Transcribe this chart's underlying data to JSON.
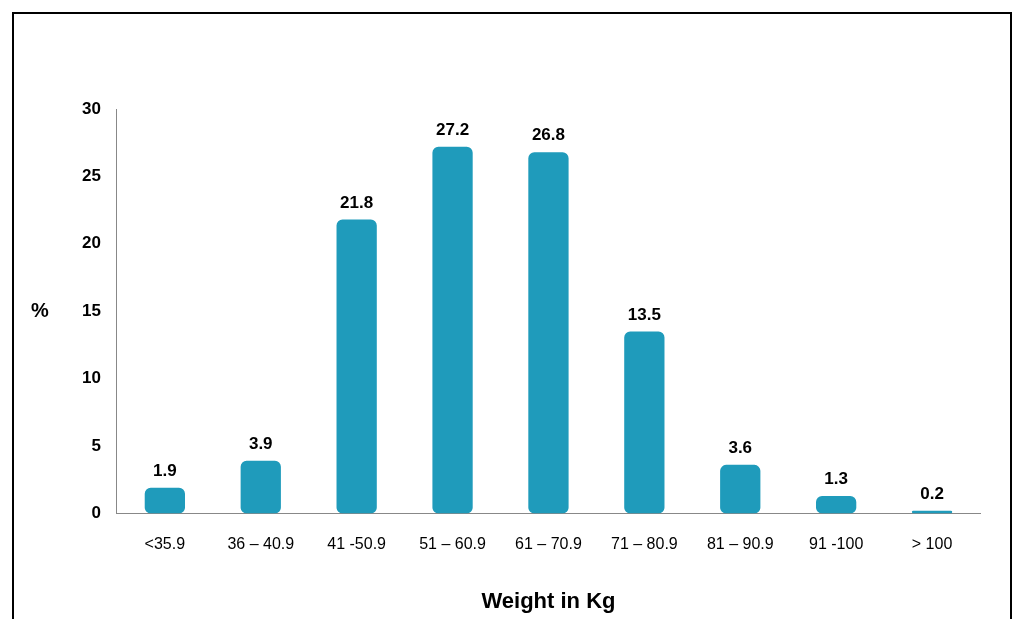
{
  "chart_data": {
    "type": "bar",
    "xlabel": "Weight in Kg",
    "ylabel": "%",
    "categories": [
      "<35.9",
      "36 – 40.9",
      "41 -50.9",
      "51 – 60.9",
      "61 – 70.9",
      "71 – 80.9",
      "81 – 90.9",
      "91 -100",
      "> 100"
    ],
    "values": [
      1.9,
      3.9,
      21.8,
      27.2,
      26.8,
      13.5,
      3.6,
      1.3,
      0.2
    ],
    "color": "#1f9bbb",
    "ylim": [
      0,
      30
    ],
    "yticks": [
      0,
      5,
      10,
      15,
      20,
      25,
      30
    ],
    "grid": false,
    "legend": false,
    "data_labels": true
  }
}
